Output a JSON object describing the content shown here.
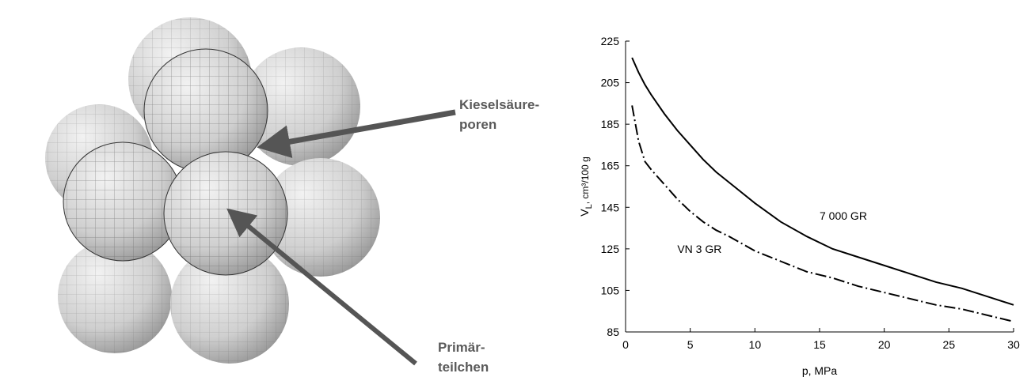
{
  "illustration": {
    "pores_label": [
      "Kieselsäure-",
      "poren"
    ],
    "particles_label": [
      "Primär-",
      "teilchen"
    ]
  },
  "chart_data": {
    "type": "line",
    "xlabel": "p, MPa",
    "ylabel": "V",
    "ylabel_subscript": "L",
    "ylabel_unit": ", cm³/100 g",
    "x": [
      0.5,
      1,
      1.5,
      2,
      3,
      4,
      5,
      6,
      7,
      8,
      10,
      12,
      14,
      16,
      18,
      20,
      22,
      24,
      26,
      28,
      30
    ],
    "series": [
      {
        "name": "7 000 GR",
        "color": "#000000",
        "style": "solid",
        "values": [
          217,
          210,
          204,
          199,
          190,
          182,
          175,
          168,
          162,
          157,
          147,
          138,
          131,
          125,
          121,
          117,
          113,
          109,
          106,
          102,
          98
        ]
      },
      {
        "name": "VN 3 GR",
        "color": "#000000",
        "style": "dashdot",
        "values": [
          194,
          177,
          167,
          163,
          156,
          149,
          143,
          138,
          134,
          131,
          124,
          119,
          114,
          111,
          107,
          104,
          101,
          98,
          96,
          93,
          90
        ]
      }
    ],
    "xlim": [
      0,
      30
    ],
    "xticks": [
      0,
      5,
      10,
      15,
      20,
      25,
      30
    ],
    "ylim": [
      85,
      225
    ],
    "yticks": [
      85,
      105,
      125,
      145,
      165,
      185,
      205,
      225
    ]
  }
}
